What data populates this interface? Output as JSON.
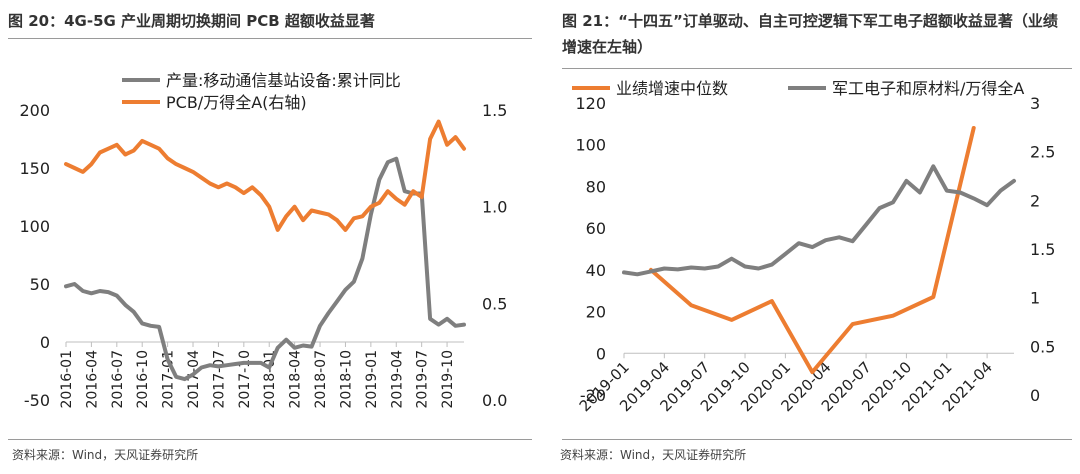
{
  "left": {
    "title": "图 20：4G-5G 产业周期切换期间 PCB 超额收益显著",
    "source": "资料来源：Wind，天风证券研究所",
    "chart_data": {
      "type": "line",
      "series": [
        {
          "name": "产量:移动通信基站设备:累计同比",
          "axis": "left",
          "color": "#7f7f7f",
          "points": [
            [
              "2016-01",
              48
            ],
            [
              "2016-02",
              50
            ],
            [
              "2016-03",
              44
            ],
            [
              "2016-04",
              42
            ],
            [
              "2016-05",
              44
            ],
            [
              "2016-06",
              43
            ],
            [
              "2016-07",
              40
            ],
            [
              "2016-08",
              32
            ],
            [
              "2016-09",
              26
            ],
            [
              "2016-10",
              16
            ],
            [
              "2016-11",
              14
            ],
            [
              "2016-12",
              13
            ],
            [
              "2017-01",
              -15
            ],
            [
              "2017-02",
              -30
            ],
            [
              "2017-03",
              -32
            ],
            [
              "2017-04",
              -28
            ],
            [
              "2017-05",
              -22
            ],
            [
              "2017-06",
              -20
            ],
            [
              "2017-07",
              -21
            ],
            [
              "2017-08",
              -20
            ],
            [
              "2017-09",
              -19
            ],
            [
              "2017-10",
              -18
            ],
            [
              "2017-11",
              -18
            ],
            [
              "2017-12",
              -18
            ],
            [
              "2018-01",
              -22
            ],
            [
              "2018-02",
              -5
            ],
            [
              "2018-03",
              2
            ],
            [
              "2018-04",
              -5
            ],
            [
              "2018-05",
              -3
            ],
            [
              "2018-06",
              -4
            ],
            [
              "2018-07",
              14
            ],
            [
              "2018-08",
              25
            ],
            [
              "2018-09",
              35
            ],
            [
              "2018-10",
              45
            ],
            [
              "2018-11",
              52
            ],
            [
              "2018-12",
              72
            ],
            [
              "2019-01",
              110
            ],
            [
              "2019-02",
              140
            ],
            [
              "2019-03",
              155
            ],
            [
              "2019-04",
              158
            ],
            [
              "2019-05",
              130
            ],
            [
              "2019-06",
              128
            ],
            [
              "2019-07",
              128
            ],
            [
              "2019-08",
              20
            ],
            [
              "2019-09",
              15
            ],
            [
              "2019-10",
              20
            ],
            [
              "2019-11",
              14
            ],
            [
              "2019-12",
              15
            ]
          ]
        },
        {
          "name": "PCB/万得全A(右轴)",
          "axis": "right",
          "color": "#ed7d31",
          "points": [
            [
              "2016-01",
              1.22
            ],
            [
              "2016-02",
              1.2
            ],
            [
              "2016-03",
              1.18
            ],
            [
              "2016-04",
              1.22
            ],
            [
              "2016-05",
              1.28
            ],
            [
              "2016-06",
              1.3
            ],
            [
              "2016-07",
              1.32
            ],
            [
              "2016-08",
              1.27
            ],
            [
              "2016-09",
              1.29
            ],
            [
              "2016-10",
              1.34
            ],
            [
              "2016-11",
              1.32
            ],
            [
              "2016-12",
              1.3
            ],
            [
              "2017-01",
              1.25
            ],
            [
              "2017-02",
              1.22
            ],
            [
              "2017-03",
              1.2
            ],
            [
              "2017-04",
              1.18
            ],
            [
              "2017-05",
              1.15
            ],
            [
              "2017-06",
              1.12
            ],
            [
              "2017-07",
              1.1
            ],
            [
              "2017-08",
              1.12
            ],
            [
              "2017-09",
              1.1
            ],
            [
              "2017-10",
              1.07
            ],
            [
              "2017-11",
              1.1
            ],
            [
              "2017-12",
              1.06
            ],
            [
              "2018-01",
              1.0
            ],
            [
              "2018-02",
              0.88
            ],
            [
              "2018-03",
              0.95
            ],
            [
              "2018-04",
              1.0
            ],
            [
              "2018-05",
              0.93
            ],
            [
              "2018-06",
              0.98
            ],
            [
              "2018-07",
              0.97
            ],
            [
              "2018-08",
              0.96
            ],
            [
              "2018-09",
              0.93
            ],
            [
              "2018-10",
              0.88
            ],
            [
              "2018-11",
              0.94
            ],
            [
              "2018-12",
              0.95
            ],
            [
              "2019-01",
              1.0
            ],
            [
              "2019-02",
              1.02
            ],
            [
              "2019-03",
              1.08
            ],
            [
              "2019-04",
              1.04
            ],
            [
              "2019-05",
              1.01
            ],
            [
              "2019-06",
              1.08
            ],
            [
              "2019-07",
              1.05
            ],
            [
              "2019-08",
              1.35
            ],
            [
              "2019-09",
              1.44
            ],
            [
              "2019-10",
              1.32
            ],
            [
              "2019-11",
              1.36
            ],
            [
              "2019-12",
              1.3
            ]
          ]
        }
      ],
      "yleft": {
        "min": -50,
        "max": 200,
        "ticks": [
          -50,
          0,
          50,
          100,
          150,
          200
        ]
      },
      "yright": {
        "min": 0.0,
        "max": 1.5,
        "ticks": [
          "0.0",
          "0.5",
          "1.0",
          "1.5"
        ]
      },
      "xticks": [
        "2016-01",
        "2016-04",
        "2016-07",
        "2016-10",
        "2017-01",
        "2017-04",
        "2017-07",
        "2017-10",
        "2018-01",
        "2018-04",
        "2018-07",
        "2018-10",
        "2019-01",
        "2019-04",
        "2019-07",
        "2019-10"
      ],
      "xrange": [
        "2016-01",
        "2019-12"
      ],
      "legend": "top",
      "grid": false
    }
  },
  "right": {
    "title": "图 21：“十四五”订单驱动、自主可控逻辑下军工电子超额收益显著（业绩增速在左轴）",
    "source": "资料来源：Wind，天风证券研究所",
    "chart_data": {
      "type": "line",
      "series": [
        {
          "name": "业绩增速中位数",
          "axis": "left",
          "color": "#ed7d31",
          "points": [
            [
              "2019-03",
              40
            ],
            [
              "2019-06",
              23
            ],
            [
              "2019-09",
              16
            ],
            [
              "2019-12",
              25
            ],
            [
              "2020-03",
              -9
            ],
            [
              "2020-06",
              14
            ],
            [
              "2020-09",
              18
            ],
            [
              "2020-12",
              27
            ],
            [
              "2021-03",
              108
            ]
          ]
        },
        {
          "name": "军工电子和原材料/万得全A",
          "axis": "right",
          "color": "#7f7f7f",
          "points": [
            [
              "2019-01",
              1.26
            ],
            [
              "2019-02",
              1.24
            ],
            [
              "2019-03",
              1.27
            ],
            [
              "2019-04",
              1.3
            ],
            [
              "2019-05",
              1.29
            ],
            [
              "2019-06",
              1.31
            ],
            [
              "2019-07",
              1.3
            ],
            [
              "2019-08",
              1.32
            ],
            [
              "2019-09",
              1.4
            ],
            [
              "2019-10",
              1.32
            ],
            [
              "2019-11",
              1.3
            ],
            [
              "2019-12",
              1.34
            ],
            [
              "2020-01",
              1.45
            ],
            [
              "2020-02",
              1.56
            ],
            [
              "2020-03",
              1.52
            ],
            [
              "2020-04",
              1.59
            ],
            [
              "2020-05",
              1.62
            ],
            [
              "2020-06",
              1.58
            ],
            [
              "2020-07",
              1.75
            ],
            [
              "2020-08",
              1.92
            ],
            [
              "2020-09",
              1.98
            ],
            [
              "2020-10",
              2.2
            ],
            [
              "2020-11",
              2.08
            ],
            [
              "2020-12",
              2.35
            ],
            [
              "2021-01",
              2.1
            ],
            [
              "2021-02",
              2.08
            ],
            [
              "2021-03",
              2.02
            ],
            [
              "2021-04",
              1.95
            ],
            [
              "2021-05",
              2.1
            ],
            [
              "2021-06",
              2.2
            ]
          ]
        }
      ],
      "yleft": {
        "min": -20,
        "max": 120,
        "ticks": [
          -20,
          0,
          20,
          40,
          60,
          80,
          100,
          120
        ]
      },
      "yright": {
        "min": 0,
        "max": 3,
        "ticks": [
          "0",
          "0.5",
          "1",
          "1.5",
          "2",
          "2.5",
          "3"
        ]
      },
      "xticks": [
        "2019-01",
        "2019-04",
        "2019-07",
        "2019-10",
        "2020-01",
        "2020-04",
        "2020-07",
        "2020-10",
        "2021-01",
        "2021-04"
      ],
      "xrange": [
        "2019-01",
        "2021-06"
      ],
      "legend": "top",
      "grid": false
    }
  }
}
